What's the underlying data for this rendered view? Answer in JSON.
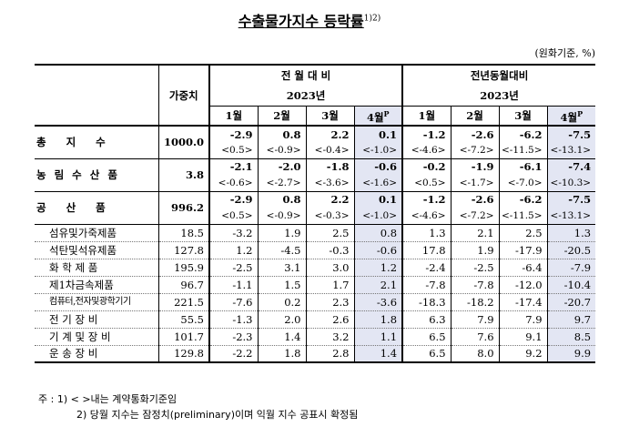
{
  "title": "수출물가지수 등락률",
  "title_sup": "1)2)",
  "unit": "(원화기준, %)",
  "headers": {
    "weight": "가중치",
    "mom": "전 월 대 비",
    "yoy": "전년동월대비",
    "year": "2023년",
    "months": [
      "1월",
      "2월",
      "3월",
      "4월"
    ],
    "prelim_mark": "P"
  },
  "main_rows": [
    {
      "label": "총 지 수",
      "weight": "1000.0",
      "values": [
        "-2.9",
        "0.8",
        "2.2",
        "0.1",
        "-1.2",
        "-2.6",
        "-6.2",
        "-7.5"
      ],
      "contract": [
        "<0.5>",
        "<-0.9>",
        "<-0.4>",
        "<-1.0>",
        "<-4.6>",
        "<-7.2>",
        "<-11.5>",
        "<-13.1>"
      ]
    },
    {
      "label": "농림수산품",
      "weight": "3.8",
      "values": [
        "-2.1",
        "-2.0",
        "-1.8",
        "-0.6",
        "-0.2",
        "-1.9",
        "-6.1",
        "-7.4"
      ],
      "contract": [
        "<-0.6>",
        "<-2.7>",
        "<-3.6>",
        "<-1.6>",
        "<0.5>",
        "<-1.7>",
        "<-7.0>",
        "<-10.3>"
      ]
    },
    {
      "label": "공 산 품",
      "weight": "996.2",
      "values": [
        "-2.9",
        "0.8",
        "2.2",
        "0.1",
        "-1.2",
        "-2.6",
        "-6.2",
        "-7.5"
      ],
      "contract": [
        "<0.5>",
        "<-0.9>",
        "<-0.3>",
        "<-1.0>",
        "<-4.6>",
        "<-7.2>",
        "<-11.5>",
        "<-13.1>"
      ]
    }
  ],
  "sub_rows": [
    {
      "label": "섬유및가죽제품",
      "weight": "18.5",
      "values": [
        "-3.2",
        "1.9",
        "2.5",
        "0.8",
        "1.3",
        "2.1",
        "2.5",
        "1.3"
      ]
    },
    {
      "label": "석탄및석유제품",
      "weight": "127.8",
      "values": [
        "1.2",
        "-4.5",
        "-0.3",
        "-0.6",
        "17.8",
        "1.9",
        "-17.9",
        "-20.5"
      ]
    },
    {
      "label": "화 학 제 품",
      "weight": "195.9",
      "values": [
        "-2.5",
        "3.1",
        "3.0",
        "1.2",
        "-2.4",
        "-2.5",
        "-6.4",
        "-7.9"
      ]
    },
    {
      "label": "제1차금속제품",
      "weight": "96.7",
      "values": [
        "-1.1",
        "1.5",
        "1.7",
        "2.1",
        "-7.8",
        "-7.8",
        "-12.0",
        "-10.4"
      ]
    },
    {
      "label": "컴퓨터,전자및광학기기",
      "weight": "221.5",
      "values": [
        "-7.6",
        "0.2",
        "2.3",
        "-3.6",
        "-18.3",
        "-18.2",
        "-17.4",
        "-20.7"
      ]
    },
    {
      "label": "전 기 장 비",
      "weight": "55.5",
      "values": [
        "-1.3",
        "2.0",
        "2.6",
        "1.8",
        "6.3",
        "7.9",
        "7.9",
        "9.7"
      ]
    },
    {
      "label": "기 계 및 장 비",
      "weight": "101.7",
      "values": [
        "-2.3",
        "1.4",
        "3.2",
        "1.1",
        "6.5",
        "7.6",
        "9.1",
        "8.5"
      ]
    },
    {
      "label": "운 송 장 비",
      "weight": "129.8",
      "values": [
        "-2.2",
        "1.8",
        "2.8",
        "1.4",
        "6.5",
        "8.0",
        "9.2",
        "9.9"
      ]
    }
  ],
  "notes": {
    "prefix": "주 : 1)",
    "note1": "< >내는 계약통화기준임",
    "note2": "2) 당월 지수는 잠정치(preliminary)이며 익월 지수 공표시 확정됨"
  }
}
